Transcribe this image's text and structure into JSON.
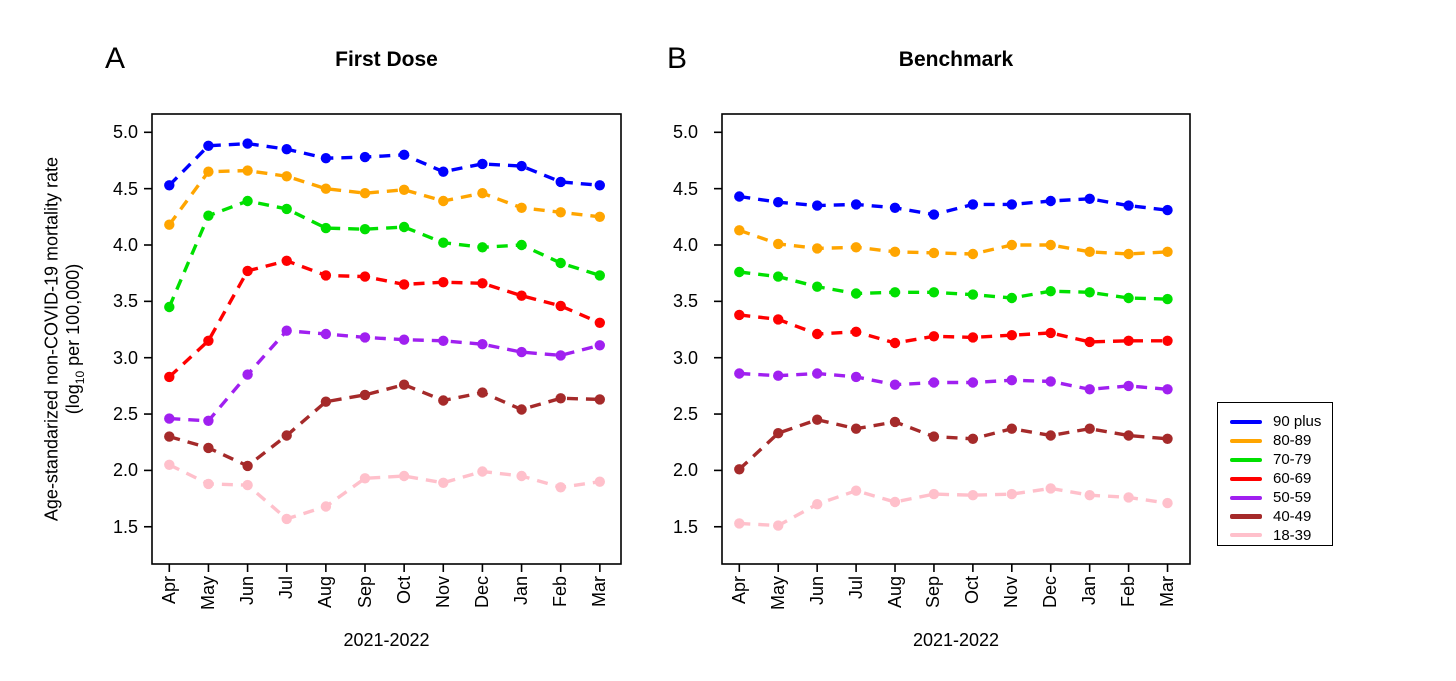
{
  "figure": {
    "background": "#FFFFFF",
    "axis_color": "#000000"
  },
  "legend": {
    "position": "right",
    "items": [
      {
        "label": "90 plus",
        "color": "#0000FF"
      },
      {
        "label": "80-89",
        "color": "#FFA500"
      },
      {
        "label": "70-79",
        "color": "#00E000"
      },
      {
        "label": "60-69",
        "color": "#FF0000"
      },
      {
        "label": "50-59",
        "color": "#A020F0"
      },
      {
        "label": "40-49",
        "color": "#A52A2A"
      },
      {
        "label": "18-39",
        "color": "#FFC0CB"
      }
    ]
  },
  "chart_data": [
    {
      "type": "line",
      "panel_label": "A",
      "title": "First Dose",
      "xlabel": "2021-2022",
      "ylabel_line1": "Age-standarized non-COVID-19 mortality rate",
      "ylabel_line2_prefix": "(log",
      "ylabel_line2_sub": "10",
      "ylabel_line2_suffix": " per 100,000)",
      "categories": [
        "Apr",
        "May",
        "Jun",
        "Jul",
        "Aug",
        "Sep",
        "Oct",
        "Nov",
        "Dec",
        "Jan",
        "Feb",
        "Mar"
      ],
      "ytick_labels": [
        "5.0",
        "4.5",
        "4.0",
        "3.5",
        "3.0",
        "2.5",
        "2.0",
        "1.5"
      ],
      "ylim": [
        1.2,
        5.2
      ],
      "grid": false,
      "line_style": "dashed",
      "marker": "filled-circle",
      "series": [
        {
          "name": "90 plus",
          "color": "#0000FF",
          "values": [
            4.53,
            4.88,
            4.9,
            4.85,
            4.77,
            4.78,
            4.8,
            4.65,
            4.72,
            4.7,
            4.56,
            4.53
          ]
        },
        {
          "name": "80-89",
          "color": "#FFA500",
          "values": [
            4.18,
            4.65,
            4.66,
            4.61,
            4.5,
            4.46,
            4.49,
            4.39,
            4.46,
            4.33,
            4.29,
            4.25
          ]
        },
        {
          "name": "70-79",
          "color": "#00E000",
          "values": [
            3.45,
            4.26,
            4.39,
            4.32,
            4.15,
            4.14,
            4.16,
            4.02,
            3.98,
            4.0,
            3.84,
            3.73
          ]
        },
        {
          "name": "60-69",
          "color": "#FF0000",
          "values": [
            2.83,
            3.15,
            3.77,
            3.86,
            3.73,
            3.72,
            3.65,
            3.67,
            3.66,
            3.55,
            3.46,
            3.31
          ]
        },
        {
          "name": "50-59",
          "color": "#A020F0",
          "values": [
            2.46,
            2.44,
            2.85,
            3.24,
            3.21,
            3.18,
            3.16,
            3.15,
            3.12,
            3.05,
            3.02,
            3.11
          ]
        },
        {
          "name": "40-49",
          "color": "#A52A2A",
          "values": [
            2.3,
            2.2,
            2.04,
            2.31,
            2.61,
            2.67,
            2.76,
            2.62,
            2.69,
            2.54,
            2.64,
            2.63
          ]
        },
        {
          "name": "18-39",
          "color": "#FFC0CB",
          "values": [
            2.05,
            1.88,
            1.87,
            1.57,
            1.68,
            1.93,
            1.95,
            1.89,
            1.99,
            1.95,
            1.85,
            1.9
          ]
        }
      ]
    },
    {
      "type": "line",
      "panel_label": "B",
      "title": "Benchmark",
      "xlabel": "2021-2022",
      "categories": [
        "Apr",
        "May",
        "Jun",
        "Jul",
        "Aug",
        "Sep",
        "Oct",
        "Nov",
        "Dec",
        "Jan",
        "Feb",
        "Mar"
      ],
      "ytick_labels": [
        "5.0",
        "4.5",
        "4.0",
        "3.5",
        "3.0",
        "2.5",
        "2.0",
        "1.5"
      ],
      "ylim": [
        1.2,
        5.2
      ],
      "grid": false,
      "line_style": "dashed",
      "marker": "filled-circle",
      "series": [
        {
          "name": "90 plus",
          "color": "#0000FF",
          "values": [
            4.43,
            4.38,
            4.35,
            4.36,
            4.33,
            4.27,
            4.36,
            4.36,
            4.39,
            4.41,
            4.35,
            4.31
          ]
        },
        {
          "name": "80-89",
          "color": "#FFA500",
          "values": [
            4.13,
            4.01,
            3.97,
            3.98,
            3.94,
            3.93,
            3.92,
            4.0,
            4.0,
            3.94,
            3.92,
            3.94
          ]
        },
        {
          "name": "70-79",
          "color": "#00E000",
          "values": [
            3.76,
            3.72,
            3.63,
            3.57,
            3.58,
            3.58,
            3.56,
            3.53,
            3.59,
            3.58,
            3.53,
            3.52
          ]
        },
        {
          "name": "60-69",
          "color": "#FF0000",
          "values": [
            3.38,
            3.34,
            3.21,
            3.23,
            3.13,
            3.19,
            3.18,
            3.2,
            3.22,
            3.14,
            3.15,
            3.15
          ]
        },
        {
          "name": "50-59",
          "color": "#A020F0",
          "values": [
            2.86,
            2.84,
            2.86,
            2.83,
            2.76,
            2.78,
            2.78,
            2.8,
            2.79,
            2.72,
            2.75,
            2.72
          ]
        },
        {
          "name": "40-49",
          "color": "#A52A2A",
          "values": [
            2.01,
            2.33,
            2.45,
            2.37,
            2.43,
            2.3,
            2.28,
            2.37,
            2.31,
            2.37,
            2.31,
            2.28
          ]
        },
        {
          "name": "18-39",
          "color": "#FFC0CB",
          "values": [
            1.53,
            1.51,
            1.7,
            1.82,
            1.72,
            1.79,
            1.78,
            1.79,
            1.84,
            1.78,
            1.76,
            1.71
          ]
        }
      ]
    }
  ]
}
